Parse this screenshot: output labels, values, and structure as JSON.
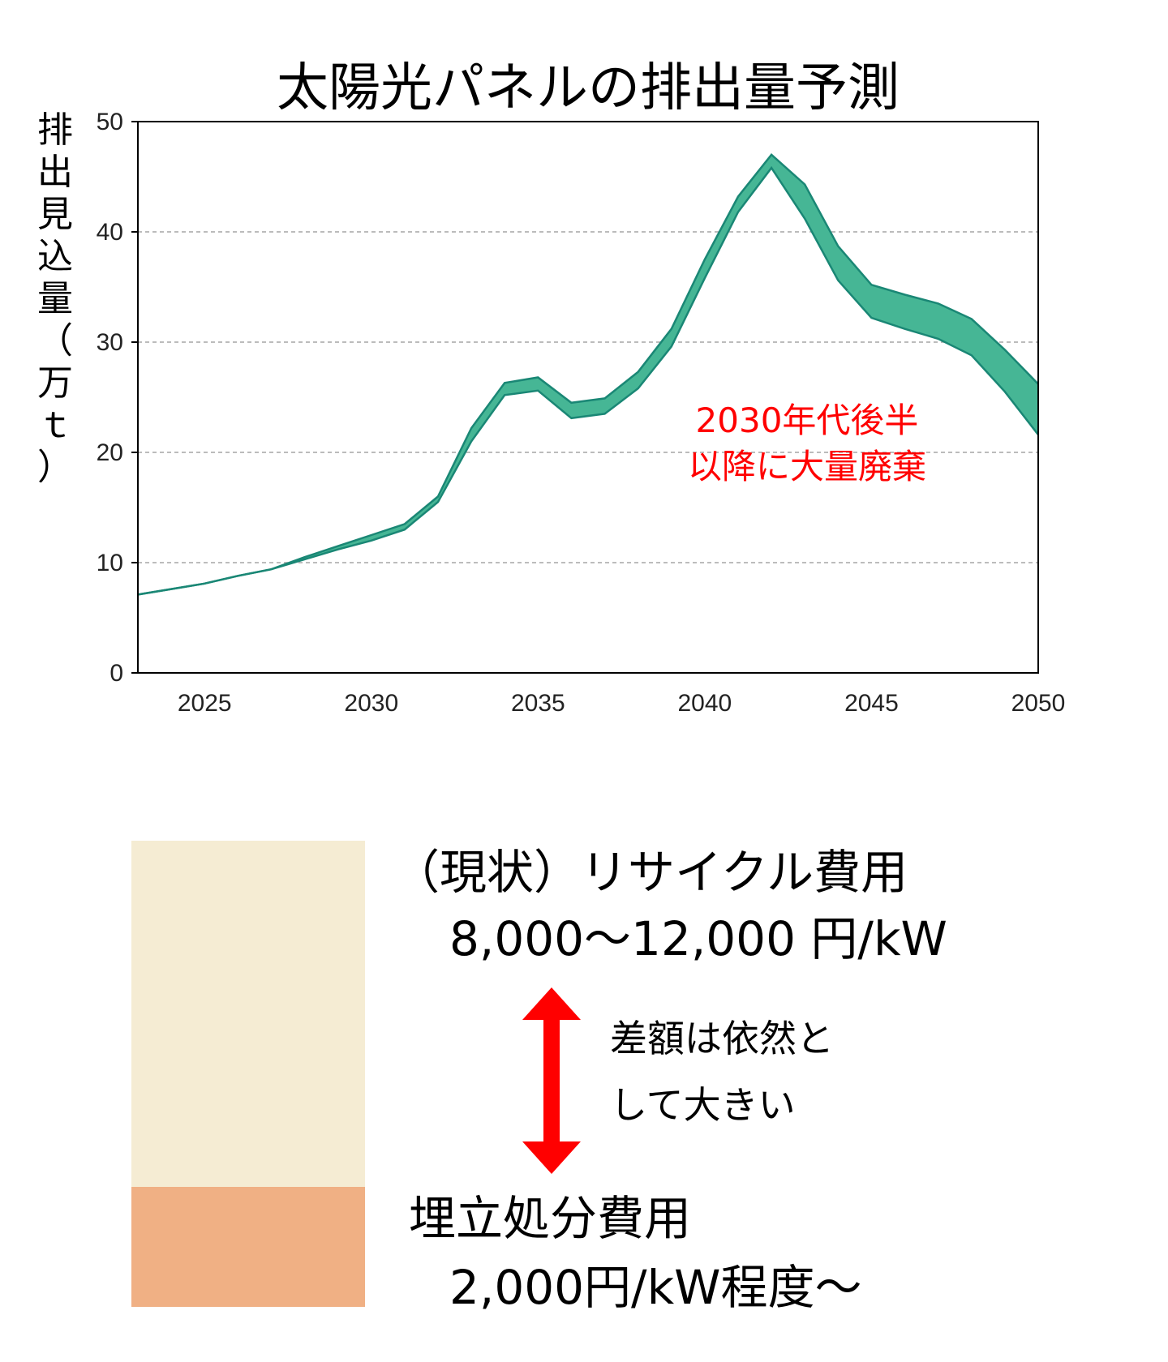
{
  "chart_data": {
    "type": "area",
    "title": "太陽光パネルの排出量予測",
    "ylabel": "排出見込量（万ｔ）",
    "xlabel": "",
    "xlim": [
      2023,
      2050
    ],
    "ylim": [
      0,
      50
    ],
    "x_ticks": [
      2025,
      2030,
      2035,
      2040,
      2045,
      2050
    ],
    "y_ticks": [
      0,
      10,
      20,
      30,
      40,
      50
    ],
    "grid": "horizontal dashed",
    "legend": "none",
    "x": [
      2023,
      2024,
      2025,
      2026,
      2027,
      2028,
      2029,
      2030,
      2031,
      2032,
      2033,
      2034,
      2035,
      2036,
      2037,
      2038,
      2039,
      2040,
      2041,
      2042,
      2043,
      2044,
      2045,
      2046,
      2047,
      2048,
      2049,
      2050
    ],
    "series": [
      {
        "values": [
          7.1,
          7.6,
          8.1,
          8.8,
          9.4,
          10.3,
          11.2,
          12.0,
          13.0,
          15.5,
          21.0,
          25.2,
          25.6,
          23.1,
          23.5,
          25.8,
          29.6,
          35.8,
          41.8,
          45.8,
          41.2,
          35.6,
          32.2,
          31.2,
          30.3,
          28.8,
          25.5,
          21.6
        ]
      },
      {
        "values": [
          7.1,
          7.6,
          8.1,
          8.8,
          9.4,
          10.5,
          11.5,
          12.5,
          13.5,
          16.0,
          22.2,
          26.3,
          26.8,
          24.5,
          24.9,
          27.3,
          31.2,
          37.5,
          43.2,
          47.0,
          44.3,
          38.7,
          35.2,
          34.3,
          33.5,
          32.1,
          29.3,
          26.2
        ]
      }
    ],
    "annotation": [
      "2030年代後半",
      "以降に大量廃棄"
    ],
    "fill_color": "#46b695",
    "line_color": "#1a8775"
  },
  "comparison": {
    "recycle_label": "（現状）リサイクル費用",
    "recycle_value": "8,000～12,000 円/kW",
    "landfill_label": "埋立処分費用",
    "landfill_value": "2,000円/kW程度～",
    "difference_note": [
      "差額は依然と",
      "して大きい"
    ],
    "recycle_color": "#f5ecd3",
    "landfill_color": "#f0b084",
    "arrow_color": "#ff0000"
  }
}
